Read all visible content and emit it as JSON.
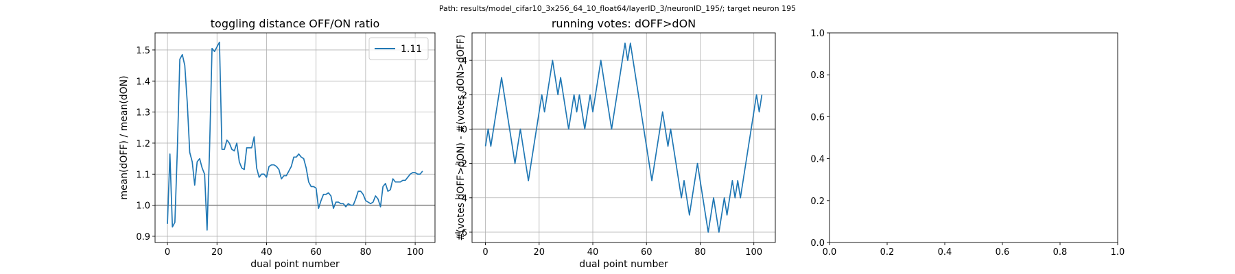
{
  "suptitle": "Path: results/model_cifar10_3x256_64_10_float64/layerID_3/neuronID_195/; target neuron 195",
  "chart_data": [
    {
      "type": "line",
      "title": "toggling distance OFF/ON ratio",
      "xlabel": "dual point number",
      "ylabel": "mean(dOFF) / mean(dON)",
      "xlim": [
        -5,
        108
      ],
      "ylim": [
        0.88,
        1.555
      ],
      "xticks": [
        0,
        20,
        40,
        60,
        80,
        100
      ],
      "yticks": [
        0.9,
        1.0,
        1.1,
        1.2,
        1.3,
        1.4,
        1.5
      ],
      "ytick_labels": [
        "0.9",
        "1.0",
        "1.1",
        "1.2",
        "1.3",
        "1.4",
        "1.5"
      ],
      "grid": true,
      "hline": 1.0,
      "legend": {
        "position": "upper right",
        "entries": [
          "1.11"
        ]
      },
      "series": [
        {
          "name": "1.11",
          "color": "#1f77b4",
          "y": [
            0.94,
            1.165,
            0.93,
            0.945,
            1.18,
            1.47,
            1.485,
            1.45,
            1.33,
            1.17,
            1.14,
            1.065,
            1.14,
            1.15,
            1.12,
            1.1,
            0.92,
            1.18,
            1.505,
            1.495,
            1.51,
            1.525,
            1.18,
            1.18,
            1.21,
            1.2,
            1.18,
            1.175,
            1.2,
            1.14,
            1.12,
            1.115,
            1.185,
            1.185,
            1.185,
            1.22,
            1.12,
            1.09,
            1.1,
            1.1,
            1.09,
            1.125,
            1.13,
            1.13,
            1.125,
            1.115,
            1.085,
            1.095,
            1.095,
            1.11,
            1.125,
            1.155,
            1.155,
            1.165,
            1.155,
            1.15,
            1.12,
            1.075,
            1.06,
            1.06,
            1.055,
            0.99,
            1.015,
            1.035,
            1.035,
            1.04,
            1.03,
            0.99,
            1.01,
            1.01,
            1.005,
            1.005,
            0.995,
            1.005,
            1.0,
            1.0,
            1.02,
            1.045,
            1.045,
            1.035,
            1.015,
            1.01,
            1.005,
            1.01,
            1.03,
            1.02,
            0.995,
            1.06,
            1.07,
            1.045,
            1.05,
            1.085,
            1.075,
            1.075,
            1.075,
            1.08,
            1.08,
            1.09,
            1.1,
            1.105,
            1.105,
            1.1,
            1.1,
            1.11
          ]
        }
      ]
    },
    {
      "type": "line",
      "title": "running votes: dOFF>dON",
      "xlabel": "dual point number",
      "ylabel": "#(votes dOFF>dON) - #(votes dON>dOFF)",
      "xlim": [
        -5,
        108
      ],
      "ylim": [
        -6.6,
        5.6
      ],
      "xticks": [
        0,
        20,
        40,
        60,
        80,
        100
      ],
      "yticks": [
        -6,
        -4,
        -2,
        0,
        2,
        4
      ],
      "ytick_labels": [
        "−6",
        "−4",
        "−2",
        "0",
        "2",
        "4"
      ],
      "grid": true,
      "hline": 0,
      "series": [
        {
          "color": "#1f77b4",
          "y": [
            -1,
            0,
            -1,
            0,
            1,
            2,
            3,
            2,
            1,
            0,
            -1,
            -2,
            -1,
            0,
            -1,
            -2,
            -3,
            -2,
            -1,
            0,
            1,
            2,
            1,
            2,
            3,
            4,
            3,
            2,
            3,
            2,
            1,
            0,
            1,
            2,
            1,
            2,
            1,
            0,
            1,
            2,
            1,
            2,
            3,
            4,
            3,
            2,
            1,
            0,
            1,
            2,
            3,
            4,
            5,
            4,
            5,
            4,
            3,
            2,
            1,
            0,
            -1,
            -2,
            -3,
            -2,
            -1,
            0,
            1,
            0,
            -1,
            0,
            -1,
            -2,
            -3,
            -4,
            -3,
            -4,
            -5,
            -4,
            -3,
            -2,
            -3,
            -4,
            -5,
            -6,
            -5,
            -4,
            -5,
            -6,
            -5,
            -4,
            -5,
            -4,
            -3,
            -4,
            -3,
            -4,
            -3,
            -2,
            -1,
            0,
            1,
            2,
            1,
            2
          ]
        }
      ]
    },
    {
      "type": "line",
      "title": "",
      "xlabel": "",
      "ylabel": "",
      "xlim": [
        0,
        1
      ],
      "ylim": [
        0,
        1
      ],
      "xticks": [
        0.0,
        0.2,
        0.4,
        0.6,
        0.8,
        1.0
      ],
      "yticks": [
        0.0,
        0.2,
        0.4,
        0.6,
        0.8,
        1.0
      ],
      "xtick_labels": [
        "0.0",
        "0.2",
        "0.4",
        "0.6",
        "0.8",
        "1.0"
      ],
      "ytick_labels": [
        "0.0",
        "0.2",
        "0.4",
        "0.6",
        "0.8",
        "1.0"
      ],
      "grid": false,
      "series": []
    }
  ]
}
